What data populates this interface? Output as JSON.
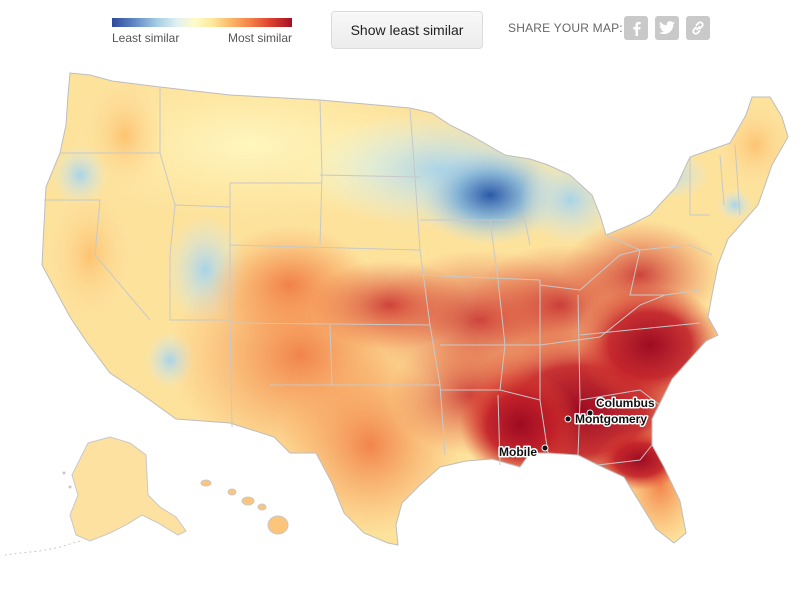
{
  "legend": {
    "low_label": "Least similar",
    "high_label": "Most similar",
    "scale_colors": [
      "#2d4a9a",
      "#a6cde3",
      "#fffbc9",
      "#fdb768",
      "#dd4130",
      "#a50f25"
    ]
  },
  "toolbar": {
    "toggle_label": "Show least similar",
    "share_label": "SHARE YOUR MAP:",
    "share_buttons": [
      "facebook-icon",
      "twitter-icon",
      "link-icon"
    ]
  },
  "map": {
    "cities": [
      {
        "name": "Columbus"
      },
      {
        "name": "Montgomery"
      },
      {
        "name": "Mobile"
      }
    ]
  }
}
